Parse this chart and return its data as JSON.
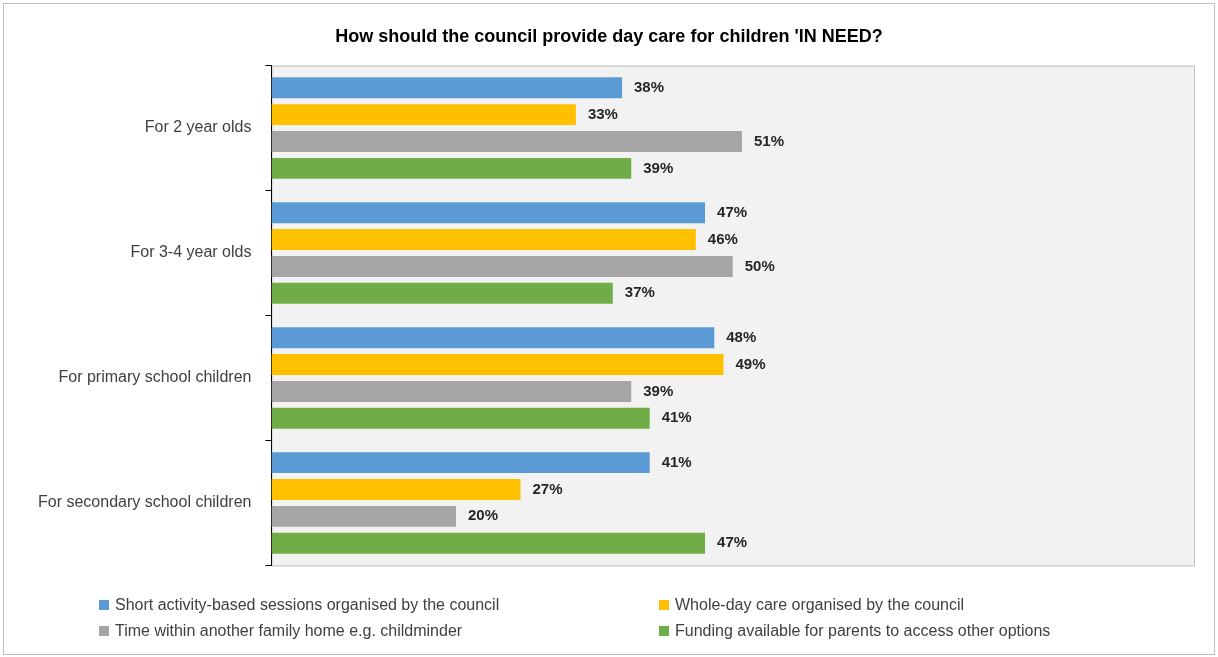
{
  "chart_data": {
    "type": "bar",
    "orientation": "horizontal",
    "title": "How should the council provide day care for children 'IN NEED?",
    "categories": [
      "For 2 year olds",
      "For 3-4 year olds",
      "For primary school children",
      "For secondary school children"
    ],
    "xlim": [
      0,
      100
    ],
    "tick_labels": "y",
    "grid": false,
    "legend": "bottom",
    "series": [
      {
        "name": "Short activity-based sessions organised by the council",
        "color": "#5b9bd5",
        "values": [
          38,
          47,
          48,
          41
        ],
        "value_labels": [
          "38%",
          "47%",
          "48%",
          "41%"
        ]
      },
      {
        "name": "Whole-day care organised by the council",
        "color": "#ffc000",
        "values": [
          33,
          46,
          49,
          27
        ],
        "value_labels": [
          "33%",
          "46%",
          "49%",
          "27%"
        ]
      },
      {
        "name": "Time within another family home e.g. childminder",
        "color": "#a5a5a5",
        "values": [
          51,
          50,
          39,
          20
        ],
        "value_labels": [
          "51%",
          "50%",
          "39%",
          "20%"
        ]
      },
      {
        "name": "Funding available for parents to access other options",
        "color": "#70ad47",
        "values": [
          39,
          37,
          41,
          47
        ],
        "value_labels": [
          "39%",
          "37%",
          "41%",
          "47%"
        ]
      }
    ]
  }
}
